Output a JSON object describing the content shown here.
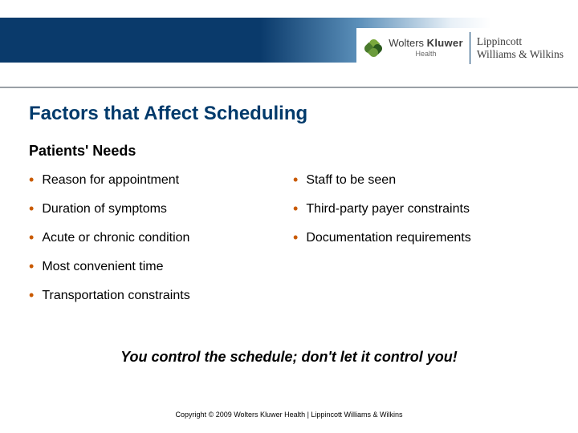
{
  "brand": {
    "wk_line1": "Wolters",
    "wk_line2": "Kluwer",
    "wk_sub": "Health",
    "lww_line1": "Lippincott",
    "lww_line2": "Williams & Wilkins"
  },
  "title": "Factors that Affect Scheduling",
  "subtitle": "Patients' Needs",
  "left_items": [
    "Reason for appointment",
    "Duration of symptoms",
    "Acute or chronic condition",
    "Most convenient time",
    "Transportation constraints"
  ],
  "right_items": [
    "Staff to be seen",
    "Third-party payer constraints",
    "Documentation requirements"
  ],
  "callout": "You control the schedule; don't let it control you!",
  "copyright": "Copyright © 2009 Wolters Kluwer Health | Lippincott Williams & Wilkins",
  "colors": {
    "title_color": "#003a6b",
    "bullet_color": "#c95a00",
    "header_dark": "#0a3a6b"
  }
}
